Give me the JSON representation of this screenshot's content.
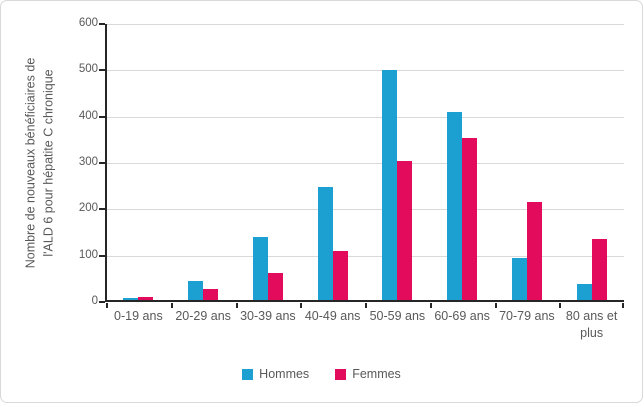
{
  "chart_data": {
    "type": "bar",
    "title": "",
    "categories": [
      "0-19 ans",
      "20-29 ans",
      "30-39 ans",
      "40-49 ans",
      "50-59 ans",
      "60-69 ans",
      "70-79 ans",
      "80 ans et plus"
    ],
    "series": [
      {
        "name": "Hommes",
        "color": "#1BA0D1",
        "values": [
          8,
          45,
          140,
          248,
          500,
          410,
          96,
          38
        ]
      },
      {
        "name": "Femmes",
        "color": "#E30B5C",
        "values": [
          11,
          28,
          62,
          110,
          305,
          355,
          215,
          137
        ]
      }
    ],
    "xlabel": "",
    "ylabel": "Nombre de nouveaux bénéficiaires de l'ALD 6 pour hépatite C chronique",
    "ylabel_lines": [
      "Nombre de nouveaux bénéficiaires de",
      "l'ALD 6 pour hépatite C chronique"
    ],
    "ylim": [
      0,
      600
    ],
    "yticks": [
      0,
      100,
      200,
      300,
      400,
      500,
      600
    ],
    "grid": "horizontal",
    "legend_position": "bottom-center",
    "styles": {
      "axis_color": "#262626",
      "grid_color": "#D9D9D9",
      "text_color": "#595959",
      "background": "#FFFFFF",
      "border_color": "#D9D9D9"
    }
  }
}
